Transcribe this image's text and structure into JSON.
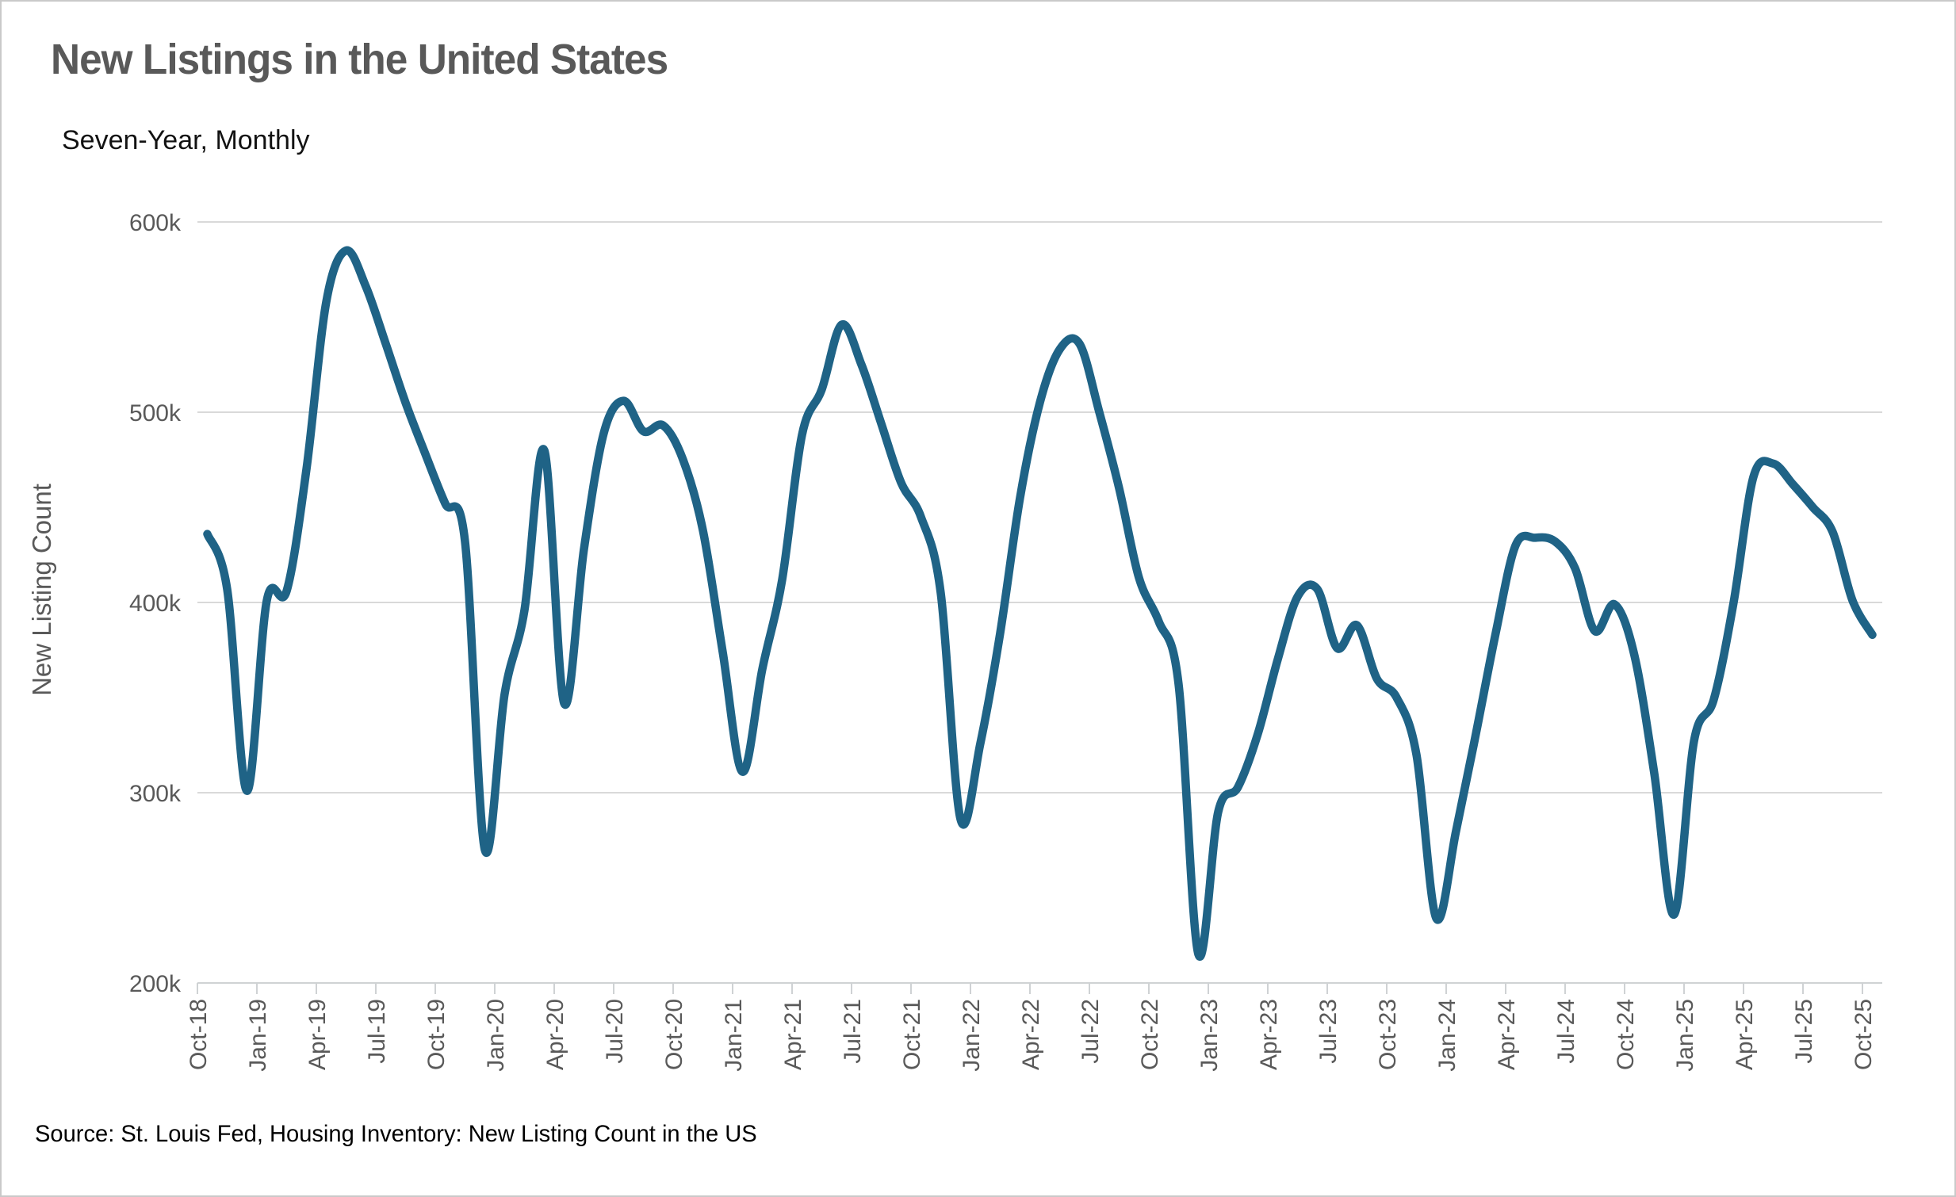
{
  "header": {
    "title": "New Listings in the United States",
    "subtitle": "Seven-Year, Monthly"
  },
  "footer": {
    "source": "Source: St. Louis Fed, Housing Inventory: New Listing Count in the US"
  },
  "colors": {
    "line": "#1f6386",
    "grid": "#d9d9d9",
    "axis_line": "#cfd2d4",
    "axis_text": "#595959",
    "title_text": "#595959",
    "body_text": "#000000",
    "border": "#c9c9c9",
    "background": "#ffffff"
  },
  "chart_data": {
    "type": "line",
    "title": "New Listings in the United States",
    "subtitle": "Seven-Year, Monthly",
    "xlabel": "",
    "ylabel": "New Listing Count",
    "units": "thousands",
    "ylim": [
      200,
      600
    ],
    "y_ticks": [
      {
        "value": 200,
        "label": "200k"
      },
      {
        "value": 300,
        "label": "300k"
      },
      {
        "value": 400,
        "label": "400k"
      },
      {
        "value": 500,
        "label": "500k"
      },
      {
        "value": 600,
        "label": "600k"
      }
    ],
    "x_tick_every": 3,
    "grid": true,
    "legend": "none",
    "source": "Source: St. Louis Fed, Housing Inventory: New Listing Count in the US",
    "x": [
      "Oct-18",
      "Nov-18",
      "Dec-18",
      "Jan-19",
      "Feb-19",
      "Mar-19",
      "Apr-19",
      "May-19",
      "Jun-19",
      "Jul-19",
      "Aug-19",
      "Sep-19",
      "Oct-19",
      "Nov-19",
      "Dec-19",
      "Jan-20",
      "Feb-20",
      "Mar-20",
      "Apr-20",
      "May-20",
      "Jun-20",
      "Jul-20",
      "Aug-20",
      "Sep-20",
      "Oct-20",
      "Nov-20",
      "Dec-20",
      "Jan-21",
      "Feb-21",
      "Mar-21",
      "Apr-21",
      "May-21",
      "Jun-21",
      "Jul-21",
      "Aug-21",
      "Sep-21",
      "Oct-21",
      "Nov-21",
      "Dec-21",
      "Jan-22",
      "Feb-22",
      "Mar-22",
      "Apr-22",
      "May-22",
      "Jun-22",
      "Jul-22",
      "Aug-22",
      "Sep-22",
      "Oct-22",
      "Nov-22",
      "Dec-22",
      "Jan-23",
      "Feb-23",
      "Mar-23",
      "Apr-23",
      "May-23",
      "Jun-23",
      "Jul-23",
      "Aug-23",
      "Sep-23",
      "Oct-23",
      "Nov-23",
      "Dec-23",
      "Jan-24",
      "Feb-24",
      "Mar-24",
      "Apr-24",
      "May-24",
      "Jun-24",
      "Jul-24",
      "Aug-24",
      "Sep-24",
      "Oct-24",
      "Nov-24",
      "Dec-24",
      "Jan-25",
      "Feb-25",
      "Mar-25",
      "Apr-25",
      "May-25",
      "Jun-25",
      "Jul-25",
      "Aug-25",
      "Sep-25",
      "Oct-25"
    ],
    "values": [
      436,
      407,
      301,
      401,
      406,
      470,
      558,
      585,
      566,
      536,
      505,
      478,
      452,
      432,
      270,
      352,
      396,
      480,
      347,
      428,
      489,
      506,
      490,
      493,
      475,
      438,
      374,
      311,
      365,
      412,
      488,
      512,
      546,
      525,
      494,
      463,
      445,
      405,
      286,
      326,
      384,
      455,
      505,
      533,
      536,
      500,
      460,
      413,
      390,
      357,
      215,
      290,
      303,
      331,
      370,
      403,
      407,
      376,
      388,
      360,
      350,
      320,
      234,
      280,
      331,
      384,
      430,
      434,
      432,
      418,
      385,
      399,
      372,
      310,
      236,
      327,
      349,
      400,
      466,
      473,
      462,
      450,
      437,
      401,
      383
    ]
  }
}
